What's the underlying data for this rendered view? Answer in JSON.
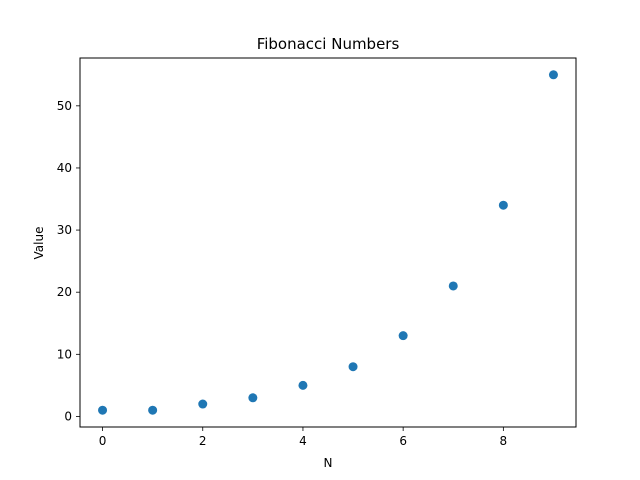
{
  "chart_data": {
    "type": "scatter",
    "title": "Fibonacci Numbers",
    "xlabel": "N",
    "ylabel": "Value",
    "xlim": [
      -0.45,
      9.45
    ],
    "ylim": [
      -1.7,
      57.7
    ],
    "xticks": [
      0,
      2,
      4,
      6,
      8
    ],
    "yticks": [
      0,
      10,
      20,
      30,
      40,
      50
    ],
    "grid": false,
    "series": [
      {
        "x": [
          0,
          1,
          2,
          3,
          4,
          5,
          6,
          7,
          8,
          9
        ],
        "y": [
          1,
          1,
          2,
          3,
          5,
          8,
          13,
          21,
          34,
          55
        ],
        "color": "#1f77b4"
      }
    ]
  }
}
